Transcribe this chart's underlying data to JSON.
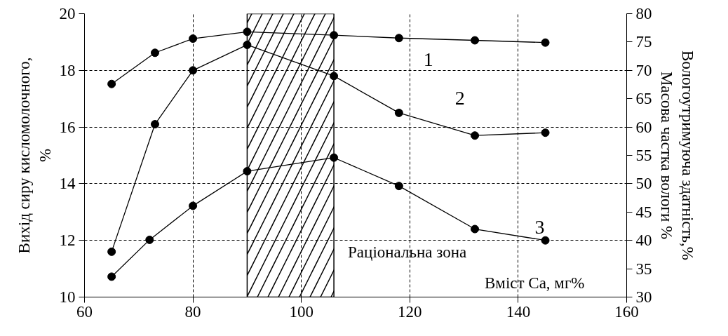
{
  "chart_data": {
    "type": "line",
    "xlabel": "Вміст Ca, мг%",
    "ylabel": "Вихід сиру кисломолочного,\n%",
    "y2label": "Вологоутримуюча здатність,%\nМасова частка вологи %",
    "xlim": [
      60,
      160
    ],
    "xticks": [
      60,
      80,
      100,
      120,
      140,
      160
    ],
    "ylim": [
      10,
      20
    ],
    "yticks": [
      10,
      12,
      14,
      16,
      18,
      20
    ],
    "y2lim": [
      30,
      80
    ],
    "y2ticks": [
      30,
      35,
      40,
      45,
      50,
      55,
      60,
      65,
      70,
      75,
      80
    ],
    "grid": true,
    "marker": "circle",
    "line_style": "solid",
    "series": [
      {
        "name": "1",
        "color": "#000000",
        "axis": "y2",
        "x": [
          65,
          73,
          80,
          90,
          106,
          118,
          132,
          145
        ],
        "values": [
          67.6,
          73.1,
          75.6,
          76.8,
          76.2,
          75.7,
          75.3,
          74.9
        ]
      },
      {
        "name": "2",
        "color": "#000000",
        "x": [
          65,
          73,
          80,
          90,
          106,
          118,
          132,
          145
        ],
        "values": [
          11.6,
          16.1,
          18.0,
          18.9,
          17.8,
          16.5,
          15.7,
          15.8
        ]
      },
      {
        "name": "3",
        "color": "#000000",
        "axis": "y2",
        "x": [
          65,
          72,
          80,
          90,
          106,
          118,
          132,
          145
        ],
        "values": [
          33.6,
          40.1,
          46.1,
          52.2,
          54.6,
          49.6,
          42.0,
          40.0
        ]
      }
    ],
    "bands": [
      {
        "axis": "x",
        "from": 90,
        "to": 106,
        "label": "Раціональна зона"
      }
    ]
  }
}
